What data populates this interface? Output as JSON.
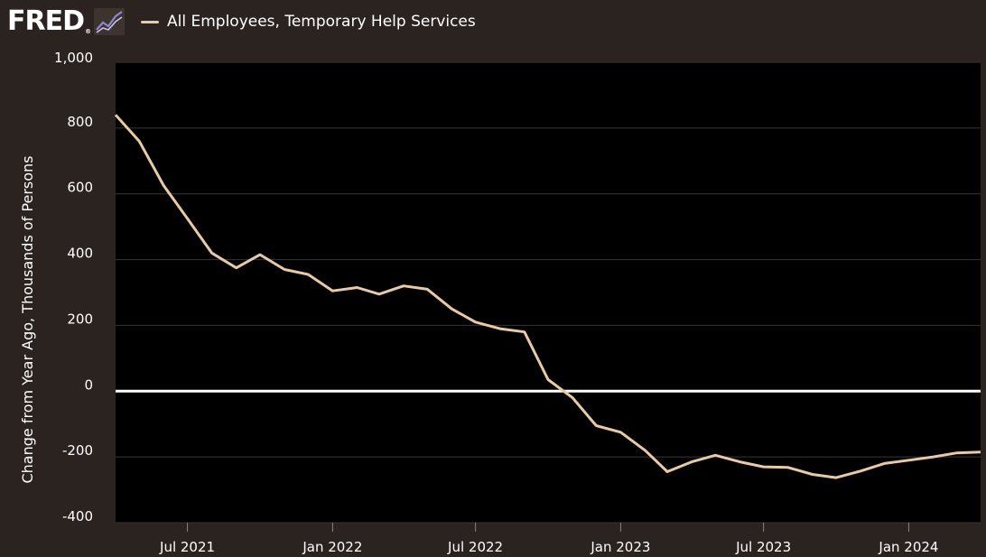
{
  "header": {
    "logo_text": "FRED",
    "logo_mark": "®",
    "logo_icon": "line-chart-icon"
  },
  "colors": {
    "background": "#2b2320",
    "plot_background": "#000000",
    "series": "#e8c9a8",
    "zero_line": "#ffffff",
    "grid": "#3a3532"
  },
  "chart_data": {
    "type": "line",
    "title": "",
    "xlabel": "",
    "ylabel": "Change from Year Ago, Thousands of Persons",
    "ylim": [
      -400,
      1000
    ],
    "xlim": [
      "2021-04-01",
      "2024-04-01"
    ],
    "yticks": [
      "1,000",
      "800",
      "600",
      "400",
      "200",
      "0",
      "-200",
      "-400"
    ],
    "ytick_values": [
      1000,
      800,
      600,
      400,
      200,
      0,
      -200,
      -400
    ],
    "xticks": [
      "Jul 2021",
      "Jan 2022",
      "Jul 2022",
      "Jan 2023",
      "Jul 2023",
      "Jan 2024"
    ],
    "xtick_dates": [
      "2021-07-01",
      "2022-01-01",
      "2022-07-01",
      "2023-01-01",
      "2023-07-01",
      "2024-01-01"
    ],
    "grid": true,
    "legend_position": "top-left",
    "series": [
      {
        "name": "All Employees, Temporary Help Services",
        "x": [
          "2021-04-01",
          "2021-05-01",
          "2021-06-01",
          "2021-07-01",
          "2021-08-01",
          "2021-09-01",
          "2021-10-01",
          "2021-11-01",
          "2021-12-01",
          "2022-01-01",
          "2022-02-01",
          "2022-03-01",
          "2022-04-01",
          "2022-05-01",
          "2022-06-01",
          "2022-07-01",
          "2022-08-01",
          "2022-09-01",
          "2022-10-01",
          "2022-11-01",
          "2022-12-01",
          "2023-01-01",
          "2023-02-01",
          "2023-03-01",
          "2023-04-01",
          "2023-05-01",
          "2023-06-01",
          "2023-07-01",
          "2023-08-01",
          "2023-09-01",
          "2023-10-01",
          "2023-11-01",
          "2023-12-01",
          "2024-01-01",
          "2024-02-01",
          "2024-03-01",
          "2024-04-01"
        ],
        "values": [
          840,
          760,
          625,
          525,
          420,
          375,
          415,
          370,
          355,
          305,
          315,
          295,
          320,
          310,
          250,
          210,
          190,
          180,
          35,
          -20,
          -105,
          -125,
          -180,
          -245,
          -215,
          -195,
          -215,
          -230,
          -232,
          -253,
          -263,
          -243,
          -220,
          -210,
          -200,
          -188,
          -185
        ]
      }
    ]
  }
}
